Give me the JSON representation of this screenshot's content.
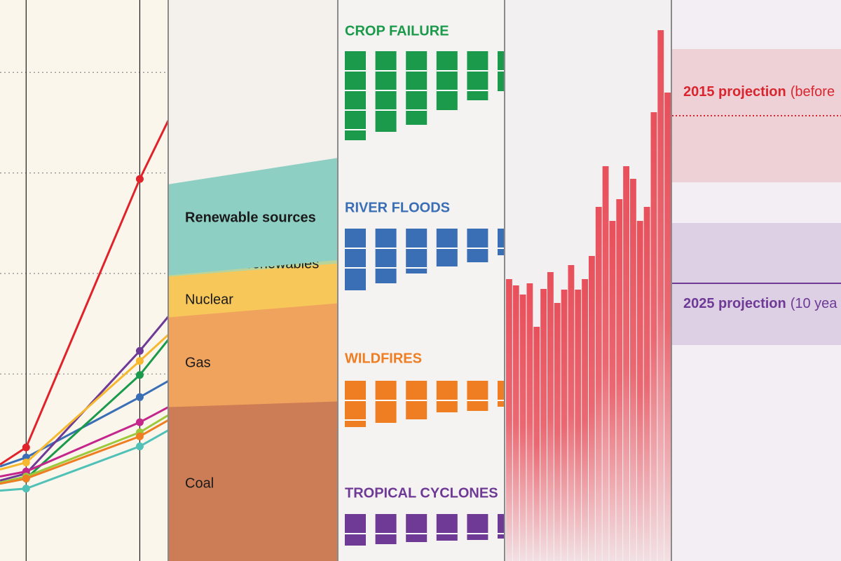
{
  "chart_data": [
    {
      "type": "line",
      "xlim": [
        0.77,
        2.25
      ],
      "xticks": [
        1,
        2
      ],
      "ylim": [
        0.14,
        5.72
      ],
      "yticks": [
        2,
        3,
        4,
        5
      ],
      "grid": true,
      "x": [
        0.77,
        1,
        2,
        2.25
      ],
      "series": [
        {
          "color": "#e0232b",
          "values": [
            1.1,
            1.27,
            3.94,
            4.52
          ]
        },
        {
          "color": "#3a6fb5",
          "values": [
            1.08,
            1.17,
            1.77,
            1.93
          ]
        },
        {
          "color": "#6e3a96",
          "values": [
            0.94,
            1.01,
            2.23,
            2.57
          ]
        },
        {
          "color": "#f5b82e",
          "values": [
            1.05,
            1.12,
            2.13,
            2.39
          ]
        },
        {
          "color": "#1a9a4a",
          "values": [
            0.91,
            0.96,
            1.99,
            2.34
          ]
        },
        {
          "color": "#c4268c",
          "values": [
            0.98,
            1.03,
            1.52,
            1.67
          ]
        },
        {
          "color": "#9cc93c",
          "values": [
            0.92,
            0.98,
            1.42,
            1.59
          ]
        },
        {
          "color": "#ef7d22",
          "values": [
            0.91,
            0.96,
            1.38,
            1.54
          ]
        },
        {
          "color": "#4fc1b6",
          "values": [
            0.84,
            0.86,
            1.28,
            1.44
          ]
        }
      ]
    },
    {
      "type": "area",
      "categories": [
        null,
        null
      ],
      "ylim": [
        0,
        100
      ],
      "series": [
        {
          "name": "Coal",
          "color": "#cc7d56",
          "values": [
            27.5,
            28.5
          ]
        },
        {
          "name": "Gas",
          "color": "#f0a35c",
          "values": [
            16,
            17.5
          ]
        },
        {
          "name": "Nuclear",
          "color": "#f7c75a",
          "values": [
            7.25,
            7.1
          ]
        },
        {
          "name": "Other nonrenewables",
          "color": "#b9d49a",
          "values": [
            0.25,
            0.6
          ]
        },
        {
          "name": "Renewable sources",
          "color": "#8ecfc4",
          "values": [
            16.1,
            18.1
          ]
        }
      ]
    },
    {
      "type": "bar",
      "title": "CROP FAILURE",
      "color": "#1a9a4a",
      "categories": [
        null,
        null,
        null,
        null,
        null,
        null
      ],
      "values": [
        127,
        115,
        105,
        84,
        70,
        57
      ],
      "ylim": [
        0,
        130
      ]
    },
    {
      "type": "bar",
      "title": "RIVER FLOODS",
      "color": "#3a6fb5",
      "categories": [
        null,
        null,
        null,
        null,
        null,
        null
      ],
      "values": [
        88,
        78,
        64,
        54,
        48,
        38
      ],
      "ylim": [
        0,
        130
      ]
    },
    {
      "type": "bar",
      "title": "WILDFIRES",
      "color": "#ef7d22",
      "categories": [
        null,
        null,
        null,
        null,
        null,
        null
      ],
      "values": [
        66,
        60,
        55,
        45,
        43,
        37
      ],
      "ylim": [
        0,
        130
      ]
    },
    {
      "type": "bar",
      "title": "TROPICAL CYCLONES",
      "color": "#6e3a96",
      "categories": [
        null,
        null,
        null,
        null,
        null,
        null
      ],
      "values": [
        45,
        43,
        40,
        38,
        37,
        35
      ],
      "ylim": [
        0,
        130
      ]
    },
    {
      "type": "column",
      "color": "#e8505b",
      "ylim": [
        0,
        8
      ],
      "categories": [
        null,
        null,
        null,
        null,
        null,
        null,
        null,
        null,
        null,
        null,
        null,
        null,
        null,
        null,
        null,
        null,
        null,
        null,
        null,
        null,
        null,
        null,
        null,
        null
      ],
      "values": [
        4.02,
        3.93,
        3.8,
        3.96,
        3.34,
        3.88,
        4.12,
        3.68,
        3.87,
        4.22,
        3.87,
        4.02,
        4.35,
        5.05,
        5.63,
        4.85,
        5.16,
        5.63,
        5.45,
        4.85,
        5.05,
        6.4,
        7.57,
        6.68
      ]
    },
    {
      "type": "projection",
      "ylim": [
        0,
        8
      ],
      "bands": [
        {
          "label": "2015 projection",
          "note": "(before",
          "color": "#d9262e",
          "value": 6.35,
          "range": [
            5.4,
            7.3
          ]
        },
        {
          "label": "2025 projection",
          "note": "(10 yea",
          "color": "#6e3a96",
          "value": 3.96,
          "range": [
            3.08,
            4.82
          ]
        }
      ]
    }
  ]
}
